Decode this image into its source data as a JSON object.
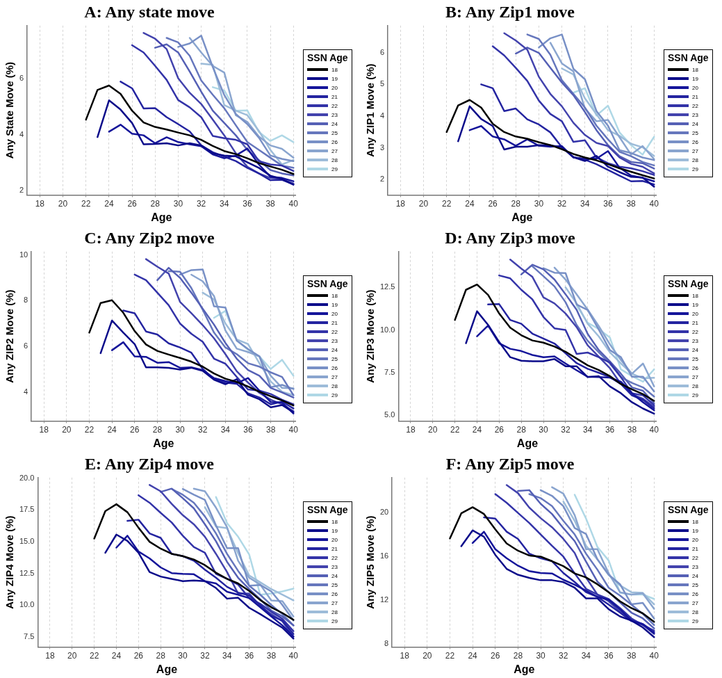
{
  "chart_data": [
    {
      "type": "line",
      "title": "A: Any state move",
      "xlabel": "Age",
      "ylabel": "Any State Move (%)",
      "legend_title": "SSN Age",
      "legend": "right",
      "grid": "x",
      "xlim": [
        16.9,
        40.2
      ],
      "xticks": [
        18,
        20,
        22,
        24,
        26,
        28,
        30,
        32,
        34,
        36,
        38,
        40
      ],
      "ylim": [
        1.85,
        7.9
      ],
      "yticks": [
        2,
        4,
        6
      ],
      "x": [
        22,
        23,
        24,
        25,
        26,
        27,
        28,
        29,
        30,
        31,
        32,
        33,
        34,
        35,
        36,
        37,
        38,
        39,
        40
      ],
      "series": [
        {
          "name": "18",
          "color": "#000000",
          "values": [
            4.54,
            5.6,
            5.76,
            5.46,
            4.86,
            4.44,
            4.28,
            4.19,
            4.08,
            3.98,
            3.82,
            3.6,
            3.42,
            3.31,
            3.16,
            2.99,
            2.87,
            2.75,
            2.6
          ]
        },
        {
          "name": "19",
          "color": "#0b0b8a",
          "values": [
            null,
            3.92,
            5.23,
            4.9,
            4.42,
            3.66,
            3.67,
            3.7,
            3.62,
            3.7,
            3.62,
            3.34,
            3.26,
            3.23,
            3.02,
            2.82,
            2.54,
            2.42,
            2.22
          ]
        },
        {
          "name": "20",
          "color": "#15159a",
          "values": [
            null,
            null,
            4.11,
            4.36,
            4.04,
            3.98,
            3.7,
            3.91,
            3.74,
            3.66,
            3.59,
            3.3,
            3.16,
            3.26,
            3.51,
            2.94,
            2.5,
            2.46,
            2.34
          ]
        },
        {
          "name": "21",
          "color": "#2424a0",
          "values": [
            null,
            null,
            null,
            5.9,
            5.66,
            4.94,
            4.95,
            4.63,
            4.38,
            4.12,
            3.62,
            3.38,
            3.22,
            3.06,
            2.82,
            2.62,
            2.38,
            2.39,
            2.23
          ]
        },
        {
          "name": "22",
          "color": "#3333a8",
          "values": [
            null,
            null,
            null,
            null,
            7.2,
            6.94,
            6.46,
            5.96,
            5.24,
            4.98,
            4.63,
            3.96,
            3.88,
            3.82,
            3.66,
            3.06,
            2.94,
            2.9,
            2.71
          ]
        },
        {
          "name": "23",
          "color": "#4343ad",
          "values": [
            null,
            null,
            null,
            null,
            null,
            7.64,
            7.43,
            7.06,
            6.02,
            5.5,
            5.1,
            4.54,
            3.98,
            3.34,
            2.86,
            2.62,
            2.46,
            2.42,
            2.26
          ]
        },
        {
          "name": "24",
          "color": "#5560b5",
          "values": [
            null,
            null,
            null,
            null,
            null,
            null,
            7.11,
            7.23,
            6.94,
            6.26,
            5.54,
            4.86,
            4.42,
            3.98,
            3.46,
            3.1,
            2.74,
            2.62,
            2.55
          ]
        },
        {
          "name": "25",
          "color": "#6677bd",
          "values": [
            null,
            null,
            null,
            null,
            null,
            null,
            null,
            7.46,
            7.3,
            6.82,
            5.94,
            5.43,
            4.95,
            4.34,
            3.74,
            3.46,
            3.18,
            2.9,
            2.82
          ]
        },
        {
          "name": "26",
          "color": "#7890c6",
          "values": [
            null,
            null,
            null,
            null,
            null,
            null,
            null,
            null,
            7.14,
            7.26,
            7.54,
            6.42,
            5.42,
            4.74,
            4.38,
            3.9,
            3.26,
            3.14,
            3.06
          ]
        },
        {
          "name": "27",
          "color": "#8aa5cf",
          "values": [
            null,
            null,
            null,
            null,
            null,
            null,
            null,
            null,
            null,
            7.46,
            6.94,
            6.46,
            6.22,
            4.7,
            4.46,
            3.94,
            3.62,
            3.5,
            3.18
          ]
        },
        {
          "name": "28",
          "color": "#9dbcd9",
          "values": [
            null,
            null,
            null,
            null,
            null,
            null,
            null,
            null,
            null,
            null,
            6.54,
            6.5,
            5.06,
            4.86,
            4.7,
            4.14,
            3.46,
            2.94,
            3.1
          ]
        },
        {
          "name": "29",
          "color": "#afd8e6",
          "values": [
            null,
            null,
            null,
            null,
            null,
            null,
            null,
            null,
            null,
            null,
            null,
            5.7,
            5.58,
            4.86,
            4.87,
            4.1,
            3.78,
            3.98,
            3.74
          ]
        }
      ]
    },
    {
      "type": "line",
      "title": "B: Any Zip1 move",
      "xlabel": "Age",
      "ylabel": "Any ZIP1 Move (%)",
      "legend_title": "SSN Age",
      "legend": "right",
      "grid": "x",
      "xlim": [
        16.9,
        40.2
      ],
      "xticks": [
        18,
        20,
        22,
        24,
        26,
        28,
        30,
        32,
        34,
        36,
        38,
        40
      ],
      "ylim": [
        1.52,
        6.85
      ],
      "yticks": [
        2,
        3,
        4,
        5,
        6
      ],
      "x": [
        22,
        23,
        24,
        25,
        26,
        27,
        28,
        29,
        30,
        31,
        32,
        33,
        34,
        35,
        36,
        37,
        38,
        39,
        40
      ],
      "series": [
        {
          "name": "18",
          "color": "#000000",
          "values": [
            3.5,
            4.34,
            4.51,
            4.27,
            3.76,
            3.5,
            3.36,
            3.29,
            3.18,
            3.09,
            2.96,
            2.81,
            2.7,
            2.61,
            2.49,
            2.36,
            2.25,
            2.14,
            2.04
          ]
        },
        {
          "name": "19",
          "color": "#0b0b8a",
          "values": [
            null,
            3.21,
            4.31,
            3.91,
            3.69,
            2.95,
            3.04,
            3.04,
            3.09,
            3.08,
            3.02,
            2.71,
            2.59,
            2.75,
            2.41,
            2.24,
            2.09,
            2.07,
            1.78
          ]
        },
        {
          "name": "20",
          "color": "#15159a",
          "values": [
            null,
            null,
            3.56,
            3.69,
            3.36,
            3.27,
            3.07,
            3.27,
            3.07,
            3.04,
            3.06,
            2.7,
            2.66,
            2.66,
            2.9,
            2.38,
            2.13,
            2.06,
            1.95
          ]
        },
        {
          "name": "21",
          "color": "#2424a0",
          "values": [
            null,
            null,
            null,
            5.0,
            4.88,
            4.16,
            4.24,
            3.9,
            3.74,
            3.49,
            3.02,
            2.71,
            2.63,
            2.49,
            2.31,
            2.13,
            1.95,
            1.96,
            1.85
          ]
        },
        {
          "name": "22",
          "color": "#3333a8",
          "values": [
            null,
            null,
            null,
            null,
            6.2,
            5.91,
            5.52,
            5.11,
            4.49,
            4.07,
            3.84,
            3.19,
            3.24,
            2.7,
            2.52,
            2.41,
            2.36,
            2.27,
            2.15
          ]
        },
        {
          "name": "23",
          "color": "#4343ad",
          "values": [
            null,
            null,
            null,
            null,
            null,
            6.61,
            6.38,
            6.09,
            5.24,
            4.7,
            4.31,
            3.79,
            3.41,
            3.16,
            3.06,
            2.7,
            2.5,
            2.41,
            2.2
          ]
        },
        {
          "name": "24",
          "color": "#5560b5",
          "values": [
            null,
            null,
            null,
            null,
            null,
            null,
            5.97,
            6.16,
            5.99,
            5.52,
            5.06,
            4.66,
            4.13,
            3.56,
            3.09,
            2.74,
            2.56,
            2.52,
            2.35
          ]
        },
        {
          "name": "25",
          "color": "#6677bd",
          "values": [
            null,
            null,
            null,
            null,
            null,
            null,
            null,
            6.57,
            6.43,
            5.93,
            5.13,
            4.7,
            4.27,
            3.7,
            3.27,
            2.88,
            2.74,
            2.56,
            2.45
          ]
        },
        {
          "name": "26",
          "color": "#7890c6",
          "values": [
            null,
            null,
            null,
            null,
            null,
            null,
            null,
            null,
            6.16,
            6.45,
            6.57,
            5.49,
            5.16,
            4.16,
            3.7,
            2.93,
            2.84,
            2.7,
            2.62
          ]
        },
        {
          "name": "27",
          "color": "#8aa5cf",
          "values": [
            null,
            null,
            null,
            null,
            null,
            null,
            null,
            null,
            null,
            6.31,
            5.66,
            5.41,
            4.24,
            3.84,
            3.88,
            3.34,
            2.79,
            3.06,
            2.65
          ]
        },
        {
          "name": "28",
          "color": "#9dbcd9",
          "values": [
            null,
            null,
            null,
            null,
            null,
            null,
            null,
            null,
            null,
            null,
            5.5,
            5.31,
            4.56,
            4.06,
            3.56,
            3.38,
            3.13,
            3.02,
            2.75
          ]
        },
        {
          "name": "29",
          "color": "#afd8e6",
          "values": [
            null,
            null,
            null,
            null,
            null,
            null,
            null,
            null,
            null,
            null,
            null,
            4.74,
            4.88,
            4.02,
            4.33,
            3.49,
            3.09,
            2.79,
            3.35
          ]
        }
      ]
    },
    {
      "type": "line",
      "title": "C: Any Zip2 move",
      "xlabel": "Age",
      "ylabel": "Any ZIP2 Move (%)",
      "legend_title": "SSN Age",
      "legend": "right",
      "grid": "x",
      "xlim": [
        16.9,
        40.2
      ],
      "xticks": [
        18,
        20,
        22,
        24,
        26,
        28,
        30,
        32,
        34,
        36,
        38,
        40
      ],
      "ylim": [
        2.73,
        10.15
      ],
      "yticks": [
        4,
        6,
        8,
        10
      ],
      "x": [
        22,
        23,
        24,
        25,
        26,
        27,
        28,
        29,
        30,
        31,
        32,
        33,
        34,
        35,
        36,
        37,
        38,
        39,
        40
      ],
      "series": [
        {
          "name": "18",
          "color": "#000000",
          "values": [
            6.6,
            7.9,
            8.02,
            7.47,
            6.67,
            6.08,
            5.8,
            5.64,
            5.49,
            5.33,
            5.11,
            4.81,
            4.58,
            4.44,
            4.24,
            4.01,
            3.81,
            3.63,
            3.41
          ]
        },
        {
          "name": "19",
          "color": "#0b0b8a",
          "values": [
            null,
            5.7,
            7.13,
            6.6,
            6.1,
            5.08,
            5.08,
            5.06,
            4.98,
            5.06,
            4.93,
            4.54,
            4.34,
            4.56,
            3.88,
            3.68,
            3.33,
            3.43,
            3.11
          ]
        },
        {
          "name": "20",
          "color": "#15159a",
          "values": [
            null,
            null,
            5.83,
            6.18,
            5.56,
            5.54,
            5.28,
            5.31,
            5.06,
            5.08,
            4.96,
            4.61,
            4.48,
            4.38,
            4.61,
            4.06,
            3.56,
            3.54,
            3.06
          ]
        },
        {
          "name": "21",
          "color": "#2424a0",
          "values": [
            null,
            null,
            null,
            7.57,
            7.45,
            6.65,
            6.52,
            6.13,
            5.95,
            5.72,
            5.01,
            4.56,
            4.41,
            4.36,
            3.94,
            3.76,
            3.46,
            3.58,
            3.28
          ]
        },
        {
          "name": "22",
          "color": "#3333a8",
          "values": [
            null,
            null,
            null,
            null,
            9.14,
            8.9,
            8.35,
            7.8,
            7.0,
            6.55,
            6.2,
            5.46,
            5.24,
            4.66,
            4.11,
            4.06,
            3.91,
            3.66,
            3.46
          ]
        },
        {
          "name": "23",
          "color": "#4343ad",
          "values": [
            null,
            null,
            null,
            null,
            null,
            9.82,
            9.49,
            9.19,
            7.95,
            7.45,
            6.93,
            6.35,
            5.66,
            4.91,
            4.41,
            3.96,
            3.66,
            3.46,
            3.16
          ]
        },
        {
          "name": "24",
          "color": "#5560b5",
          "values": [
            null,
            null,
            null,
            null,
            null,
            null,
            8.9,
            9.44,
            9.0,
            8.35,
            7.65,
            6.95,
            6.15,
            5.46,
            4.96,
            4.71,
            4.18,
            3.98,
            3.76
          ]
        },
        {
          "name": "25",
          "color": "#6677bd",
          "values": [
            null,
            null,
            null,
            null,
            null,
            null,
            null,
            9.29,
            9.27,
            8.55,
            7.6,
            6.6,
            5.95,
            5.66,
            5.26,
            5.11,
            4.86,
            4.66,
            3.86
          ]
        },
        {
          "name": "26",
          "color": "#7890c6",
          "values": [
            null,
            null,
            null,
            null,
            null,
            null,
            null,
            null,
            9.14,
            9.34,
            9.37,
            7.75,
            7.7,
            6.25,
            5.88,
            5.56,
            4.21,
            4.31,
            4.13
          ]
        },
        {
          "name": "27",
          "color": "#8aa5cf",
          "values": [
            null,
            null,
            null,
            null,
            null,
            null,
            null,
            null,
            null,
            9.14,
            8.85,
            8.2,
            6.7,
            5.9,
            5.75,
            5.56,
            4.71,
            4.18,
            4.16
          ]
        },
        {
          "name": "28",
          "color": "#9dbcd9",
          "values": [
            null,
            null,
            null,
            null,
            null,
            null,
            null,
            null,
            null,
            null,
            8.35,
            8.05,
            7.0,
            6.3,
            6.1,
            5.26,
            4.46,
            4.01,
            3.86
          ]
        },
        {
          "name": "29",
          "color": "#afd8e6",
          "values": [
            null,
            null,
            null,
            null,
            null,
            null,
            null,
            null,
            null,
            null,
            null,
            7.25,
            7.55,
            6.25,
            5.85,
            5.56,
            5.01,
            5.41,
            4.71
          ]
        }
      ]
    },
    {
      "type": "line",
      "title": "D: Any Zip3 move",
      "xlabel": "Age",
      "ylabel": "Any ZIP3 Move (%)",
      "legend_title": "SSN Age",
      "legend": "right",
      "grid": "x",
      "xlim": [
        16.9,
        40.2
      ],
      "xticks": [
        18,
        20,
        22,
        24,
        26,
        28,
        30,
        32,
        34,
        36,
        38,
        40
      ],
      "ylim": [
        4.67,
        14.6
      ],
      "yticks": [
        {
          "value": 5,
          "label": "5.0"
        },
        7.5,
        {
          "value": 10,
          "label": "10.0"
        },
        12.5
      ],
      "x": [
        22,
        23,
        24,
        25,
        26,
        27,
        28,
        29,
        30,
        31,
        32,
        33,
        34,
        35,
        36,
        37,
        38,
        39,
        40
      ],
      "series": [
        {
          "name": "18",
          "color": "#000000",
          "values": [
            10.59,
            12.36,
            12.67,
            12.06,
            10.97,
            10.14,
            9.7,
            9.39,
            9.26,
            9.03,
            8.73,
            8.33,
            7.93,
            7.66,
            7.3,
            6.84,
            6.53,
            6.24,
            5.85
          ]
        },
        {
          "name": "19",
          "color": "#0b0b8a",
          "values": [
            null,
            9.23,
            11.1,
            10.3,
            9.3,
            8.41,
            8.2,
            8.17,
            8.17,
            8.3,
            7.88,
            7.88,
            7.24,
            7.3,
            6.7,
            6.3,
            5.77,
            5.4,
            5.1
          ]
        },
        {
          "name": "20",
          "color": "#15159a",
          "values": [
            null,
            null,
            9.63,
            10.27,
            9.23,
            8.9,
            8.77,
            8.54,
            8.41,
            8.46,
            8.04,
            7.64,
            7.26,
            7.24,
            7.21,
            6.97,
            6.3,
            5.77,
            5.3
          ]
        },
        {
          "name": "21",
          "color": "#2424a0",
          "values": [
            null,
            null,
            null,
            11.5,
            11.52,
            10.59,
            10.37,
            9.79,
            9.5,
            9.21,
            8.64,
            8.06,
            7.73,
            7.5,
            7.24,
            6.84,
            6.17,
            5.91,
            5.4
          ]
        },
        {
          "name": "22",
          "color": "#3333a8",
          "values": [
            null,
            null,
            null,
            null,
            13.2,
            13.03,
            12.36,
            11.8,
            10.77,
            10.1,
            10.01,
            8.6,
            8.68,
            8.41,
            8.1,
            7.24,
            6.3,
            6.17,
            5.6
          ]
        },
        {
          "name": "23",
          "color": "#4343ad",
          "values": [
            null,
            null,
            null,
            null,
            null,
            14.13,
            13.6,
            13.12,
            11.92,
            11.56,
            10.97,
            10.17,
            9.1,
            8.44,
            7.77,
            6.84,
            6.24,
            5.97,
            5.5
          ]
        },
        {
          "name": "24",
          "color": "#5560b5",
          "values": [
            null,
            null,
            null,
            null,
            null,
            null,
            13.26,
            13.83,
            13.56,
            12.96,
            12.1,
            11.19,
            9.77,
            8.83,
            8.17,
            7.44,
            6.64,
            6.44,
            5.7
          ]
        },
        {
          "name": "25",
          "color": "#6677bd",
          "values": [
            null,
            null,
            null,
            null,
            null,
            null,
            null,
            13.74,
            13.16,
            12.56,
            11.63,
            10.3,
            9.37,
            8.7,
            8.04,
            7.24,
            6.9,
            6.64,
            6.1
          ]
        },
        {
          "name": "26",
          "color": "#7890c6",
          "values": [
            null,
            null,
            null,
            null,
            null,
            null,
            null,
            null,
            13.63,
            13.36,
            13.34,
            11.5,
            11.17,
            10.03,
            8.83,
            8.41,
            7.26,
            7.26,
            6.4
          ]
        },
        {
          "name": "27",
          "color": "#8aa5cf",
          "values": [
            null,
            null,
            null,
            null,
            null,
            null,
            null,
            null,
            null,
            13.66,
            12.96,
            12.1,
            11.2,
            10.23,
            9.17,
            8.24,
            7.44,
            8.04,
            6.7
          ]
        },
        {
          "name": "28",
          "color": "#9dbcd9",
          "values": [
            null,
            null,
            null,
            null,
            null,
            null,
            null,
            null,
            null,
            null,
            12.5,
            11.56,
            10.37,
            9.63,
            8.7,
            8.04,
            7.44,
            7.17,
            7.2
          ]
        },
        {
          "name": "29",
          "color": "#afd8e6",
          "values": [
            null,
            null,
            null,
            null,
            null,
            null,
            null,
            null,
            null,
            null,
            null,
            11.43,
            10.43,
            10.06,
            9.57,
            7.7,
            7.3,
            6.97,
            7.7
          ]
        }
      ]
    },
    {
      "type": "line",
      "title": "E: Any Zip4 move",
      "xlabel": "Age",
      "ylabel": "Any ZIP4 Move (%)",
      "legend_title": "SSN Age",
      "legend": "right",
      "grid": "x",
      "xlim": [
        16.9,
        40.2
      ],
      "xticks": [
        18,
        20,
        22,
        24,
        26,
        28,
        30,
        32,
        34,
        36,
        38,
        40
      ],
      "ylim": [
        6.7,
        20.05
      ],
      "yticks": [
        7.5,
        {
          "value": 10,
          "label": "10.0"
        },
        12.5,
        {
          "value": 15,
          "label": "15.0"
        },
        17.5,
        {
          "value": 20,
          "label": "20.0"
        }
      ],
      "x": [
        22,
        23,
        24,
        25,
        26,
        27,
        28,
        29,
        30,
        31,
        32,
        33,
        34,
        35,
        36,
        37,
        38,
        39,
        40
      ],
      "series": [
        {
          "name": "18",
          "color": "#000000",
          "values": [
            15.24,
            17.41,
            17.95,
            17.32,
            16.1,
            14.99,
            14.45,
            14.04,
            13.86,
            13.59,
            13.15,
            12.55,
            12.07,
            11.71,
            11.12,
            10.4,
            9.83,
            9.38,
            8.84
          ]
        },
        {
          "name": "19",
          "color": "#0b0b8a",
          "values": [
            null,
            14.13,
            15.56,
            15.06,
            14.13,
            12.61,
            12.25,
            12.07,
            11.89,
            11.94,
            11.89,
            11.35,
            10.51,
            10.58,
            9.79,
            9.29,
            8.75,
            8.22,
            7.36
          ]
        },
        {
          "name": "20",
          "color": "#15159a",
          "values": [
            null,
            null,
            14.53,
            15.47,
            14.22,
            13.68,
            12.97,
            12.52,
            12.46,
            12.43,
            11.89,
            11.71,
            11.05,
            10.82,
            10.55,
            9.83,
            9.11,
            8.4,
            7.54
          ]
        },
        {
          "name": "21",
          "color": "#2424a0",
          "values": [
            null,
            null,
            null,
            16.64,
            16.73,
            15.65,
            15.3,
            14.04,
            13.86,
            13.5,
            12.79,
            12.16,
            11.44,
            10.99,
            10.76,
            10.01,
            9.15,
            8.79,
            7.72
          ]
        },
        {
          "name": "22",
          "color": "#3333a8",
          "values": [
            null,
            null,
            null,
            null,
            18.66,
            18.07,
            17.27,
            16.51,
            15.47,
            14.58,
            14.13,
            12.46,
            12.07,
            11.62,
            10.55,
            10.1,
            9.47,
            8.93,
            7.95
          ]
        },
        {
          "name": "23",
          "color": "#4343ad",
          "values": [
            null,
            null,
            null,
            null,
            null,
            19.47,
            18.97,
            17.98,
            17.09,
            16.37,
            15.39,
            14.04,
            12.61,
            10.91,
            10.91,
            9.92,
            9.29,
            8.72,
            7.5
          ]
        },
        {
          "name": "24",
          "color": "#5560b5",
          "values": [
            null,
            null,
            null,
            null,
            null,
            null,
            18.92,
            19.18,
            18.43,
            17.63,
            16.37,
            15.03,
            13.41,
            12.16,
            11.26,
            10.46,
            9.56,
            9.11,
            8.4
          ]
        },
        {
          "name": "25",
          "color": "#6677bd",
          "values": [
            null,
            null,
            null,
            null,
            null,
            null,
            null,
            19.15,
            18.7,
            18.07,
            16.99,
            15.65,
            14.04,
            12.7,
            11.53,
            10.82,
            10.01,
            9.29,
            8.4
          ]
        },
        {
          "name": "26",
          "color": "#7890c6",
          "values": [
            null,
            null,
            null,
            null,
            null,
            null,
            null,
            null,
            19.15,
            18.7,
            18.29,
            16.28,
            14.49,
            14.49,
            11.53,
            11.59,
            11.08,
            10.01,
            8.79
          ]
        },
        {
          "name": "27",
          "color": "#8aa5cf",
          "values": [
            null,
            null,
            null,
            null,
            null,
            null,
            null,
            null,
            null,
            19.18,
            18.97,
            17.68,
            16.14,
            13.5,
            12.16,
            11.62,
            10.37,
            10.31,
            9.11
          ]
        },
        {
          "name": "28",
          "color": "#9dbcd9",
          "values": [
            null,
            null,
            null,
            null,
            null,
            null,
            null,
            null,
            null,
            null,
            17.72,
            16.19,
            16.06,
            14.09,
            12.34,
            11.8,
            11.26,
            10.82,
            10.37
          ]
        },
        {
          "name": "29",
          "color": "#afd8e6",
          "values": [
            null,
            null,
            null,
            null,
            null,
            null,
            null,
            null,
            null,
            null,
            null,
            18.52,
            16.46,
            15.39,
            13.99,
            10.82,
            10.91,
            11.08,
            11.3
          ]
        }
      ]
    },
    {
      "type": "line",
      "title": "F: Any Zip5 move",
      "xlabel": "Age",
      "ylabel": "Any ZIP5 Move (%)",
      "legend_title": "SSN Age",
      "legend": "right",
      "grid": "x",
      "xlim": [
        16.9,
        40.2
      ],
      "xticks": [
        18,
        20,
        22,
        24,
        26,
        28,
        30,
        32,
        34,
        36,
        38,
        40
      ],
      "ylim": [
        7.7,
        23.2
      ],
      "yticks": [
        8,
        12,
        16,
        20
      ],
      "x": [
        22,
        23,
        24,
        25,
        26,
        27,
        28,
        29,
        30,
        31,
        32,
        33,
        34,
        35,
        36,
        37,
        38,
        39,
        40
      ],
      "series": [
        {
          "name": "18",
          "color": "#000000",
          "values": [
            17.63,
            19.93,
            20.49,
            19.87,
            18.46,
            17.17,
            16.51,
            16.07,
            15.97,
            15.55,
            15.1,
            14.43,
            14.06,
            13.44,
            12.71,
            11.88,
            11.26,
            10.78,
            10.0
          ]
        },
        {
          "name": "19",
          "color": "#0b0b8a",
          "values": [
            null,
            16.92,
            18.37,
            17.79,
            16.13,
            14.85,
            14.31,
            14.02,
            13.81,
            13.81,
            13.64,
            13.12,
            12.15,
            12.15,
            11.15,
            10.49,
            10.12,
            9.49,
            8.6
          ]
        },
        {
          "name": "20",
          "color": "#15159a",
          "values": [
            null,
            null,
            17.21,
            18.25,
            16.65,
            15.82,
            15.14,
            14.64,
            14.47,
            14.43,
            13.85,
            13.39,
            12.85,
            12.29,
            12.02,
            11.15,
            10.12,
            9.8,
            9.0
          ]
        },
        {
          "name": "21",
          "color": "#2424a0",
          "values": [
            null,
            null,
            null,
            19.56,
            19.45,
            18.25,
            17.59,
            16.24,
            15.82,
            15.55,
            14.47,
            13.64,
            12.71,
            12.29,
            11.57,
            10.84,
            10.07,
            9.74,
            8.9
          ]
        },
        {
          "name": "22",
          "color": "#3333a8",
          "values": [
            null,
            null,
            null,
            null,
            21.69,
            20.9,
            19.97,
            19.04,
            18.0,
            16.96,
            15.97,
            14.43,
            13.02,
            12.5,
            12.09,
            11.26,
            10.32,
            9.7,
            9.2
          ]
        },
        {
          "name": "23",
          "color": "#4343ad",
          "values": [
            null,
            null,
            null,
            null,
            null,
            22.52,
            21.78,
            20.45,
            19.49,
            18.66,
            17.59,
            16.3,
            14.06,
            12.5,
            11.88,
            10.95,
            10.22,
            9.8,
            9.1
          ]
        },
        {
          "name": "24",
          "color": "#5560b5",
          "values": [
            null,
            null,
            null,
            null,
            null,
            null,
            21.98,
            22.05,
            20.8,
            19.87,
            18.58,
            17.38,
            15.51,
            13.68,
            12.71,
            11.78,
            10.84,
            10.32,
            9.4
          ]
        },
        {
          "name": "25",
          "color": "#6677bd",
          "values": [
            null,
            null,
            null,
            null,
            null,
            null,
            null,
            21.69,
            21.32,
            20.59,
            19.24,
            18.0,
            16.24,
            14.78,
            13.12,
            12.4,
            11.57,
            10.74,
            9.7
          ]
        },
        {
          "name": "26",
          "color": "#7890c6",
          "values": [
            null,
            null,
            null,
            null,
            null,
            null,
            null,
            null,
            22.05,
            21.53,
            20.59,
            18.58,
            18.04,
            15.72,
            14.31,
            13.44,
            11.61,
            11.73,
            10.3
          ]
        },
        {
          "name": "27",
          "color": "#8aa5cf",
          "values": [
            null,
            null,
            null,
            null,
            null,
            null,
            null,
            null,
            null,
            22.32,
            21.73,
            19.76,
            16.65,
            16.65,
            14.43,
            12.71,
            12.5,
            12.61,
            11.2
          ]
        },
        {
          "name": "28",
          "color": "#9dbcd9",
          "values": [
            null,
            null,
            null,
            null,
            null,
            null,
            null,
            null,
            null,
            null,
            21.01,
            19.24,
            16.96,
            15.72,
            14.27,
            13.33,
            12.71,
            12.65,
            11.6
          ]
        },
        {
          "name": "29",
          "color": "#afd8e6",
          "values": [
            null,
            null,
            null,
            null,
            null,
            null,
            null,
            null,
            null,
            null,
            null,
            21.63,
            19.45,
            16.86,
            15.61,
            12.65,
            12.5,
            12.5,
            12.1
          ]
        }
      ]
    }
  ]
}
